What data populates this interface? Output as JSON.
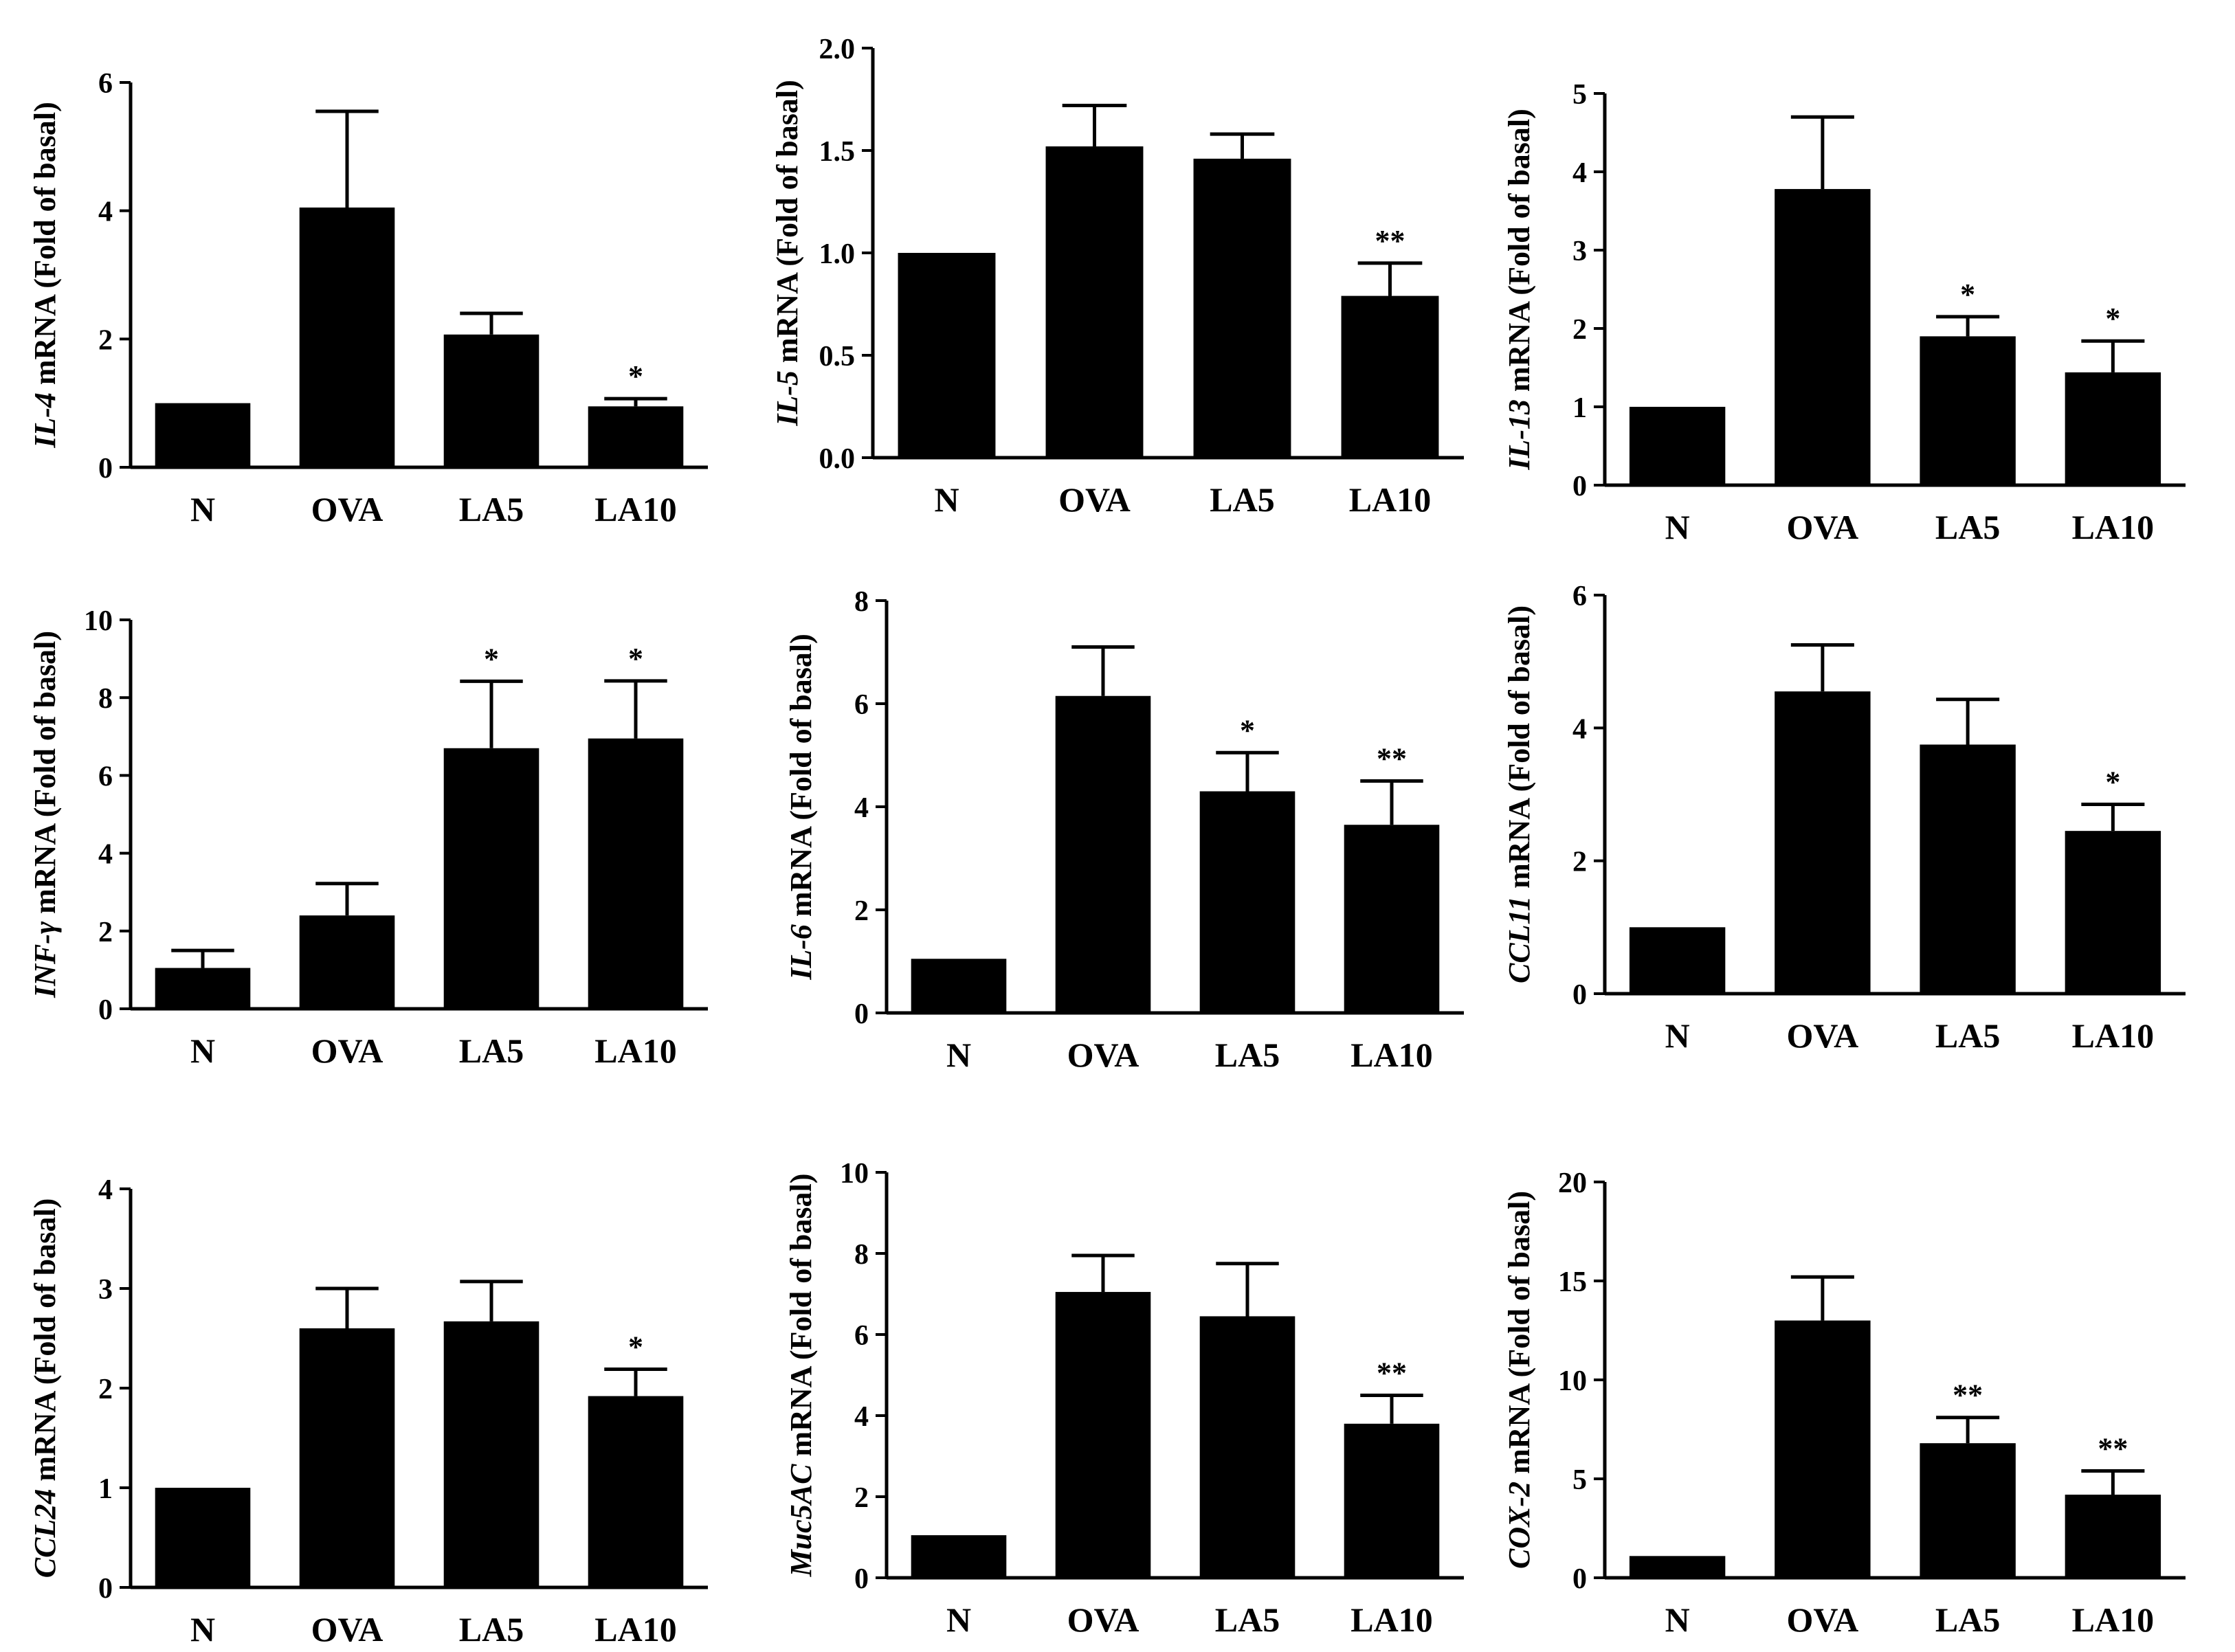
{
  "chart_data": [
    {
      "type": "bar",
      "categories": [
        "N",
        "OVA",
        "LA5",
        "LA10"
      ],
      "values": [
        1.0,
        4.05,
        2.07,
        0.95
      ],
      "errors": [
        0,
        1.5,
        0.33,
        0.12
      ],
      "significance": [
        "",
        "",
        "",
        "*"
      ],
      "ylabel_gene": "IL-4",
      "ylabel_rest": " mRNA (Fold of basal)",
      "ylim": [
        0,
        6
      ],
      "yticks": [
        "0",
        "2",
        "4",
        "6"
      ]
    },
    {
      "type": "bar",
      "categories": [
        "N",
        "OVA",
        "LA5",
        "LA10"
      ],
      "values": [
        1.0,
        1.52,
        1.46,
        0.79
      ],
      "errors": [
        0,
        0.2,
        0.12,
        0.16
      ],
      "significance": [
        "",
        "",
        "",
        "**"
      ],
      "ylabel_gene": "IL-5",
      "ylabel_rest": " mRNA (Fold of basal)",
      "ylim": [
        0,
        2.0
      ],
      "yticks": [
        "0.0",
        "0.5",
        "1.0",
        "1.5",
        "2.0"
      ]
    },
    {
      "type": "bar",
      "categories": [
        "N",
        "OVA",
        "LA5",
        "LA10"
      ],
      "values": [
        1.0,
        3.78,
        1.9,
        1.44
      ],
      "errors": [
        0,
        0.92,
        0.25,
        0.4
      ],
      "significance": [
        "",
        "",
        "*",
        "*"
      ],
      "ylabel_gene": "IL-13",
      "ylabel_rest": " mRNA (Fold of basal)",
      "ylim": [
        0,
        5
      ],
      "yticks": [
        "0",
        "1",
        "2",
        "3",
        "4",
        "5"
      ]
    },
    {
      "type": "bar",
      "categories": [
        "N",
        "OVA",
        "LA5",
        "LA10"
      ],
      "values": [
        1.05,
        2.4,
        6.7,
        6.95
      ],
      "errors": [
        0.45,
        0.82,
        1.72,
        1.48
      ],
      "significance": [
        "",
        "",
        "*",
        "*"
      ],
      "ylabel_gene": "INF-γ",
      "ylabel_rest": " mRNA (Fold of basal)",
      "ylim": [
        0,
        10
      ],
      "yticks": [
        "0",
        "2",
        "4",
        "6",
        "8",
        "10"
      ]
    },
    {
      "type": "bar",
      "categories": [
        "N",
        "OVA",
        "LA5",
        "LA10"
      ],
      "values": [
        1.05,
        6.15,
        4.3,
        3.65
      ],
      "errors": [
        0,
        0.95,
        0.75,
        0.85
      ],
      "significance": [
        "",
        "",
        "*",
        "**"
      ],
      "ylabel_gene": "IL-6",
      "ylabel_rest": " mRNA (Fold of basal)",
      "ylim": [
        0,
        8
      ],
      "yticks": [
        "0",
        "2",
        "4",
        "6",
        "8"
      ]
    },
    {
      "type": "bar",
      "categories": [
        "N",
        "OVA",
        "LA5",
        "LA10"
      ],
      "values": [
        1.0,
        4.55,
        3.75,
        2.45
      ],
      "errors": [
        0,
        0.7,
        0.68,
        0.4
      ],
      "significance": [
        "",
        "",
        "",
        "*"
      ],
      "ylabel_gene": "CCL11",
      "ylabel_rest": " mRNA (Fold of basal)",
      "ylim": [
        0,
        6
      ],
      "yticks": [
        "0",
        "2",
        "4",
        "6"
      ]
    },
    {
      "type": "bar",
      "categories": [
        "N",
        "OVA",
        "LA5",
        "LA10"
      ],
      "values": [
        1.0,
        2.6,
        2.67,
        1.92
      ],
      "errors": [
        0,
        0.4,
        0.4,
        0.27
      ],
      "significance": [
        "",
        "",
        "",
        "*"
      ],
      "ylabel_gene": "CCL24",
      "ylabel_rest": " mRNA (Fold of basal)",
      "ylim": [
        0,
        4
      ],
      "yticks": [
        "0",
        "1",
        "2",
        "3",
        "4"
      ]
    },
    {
      "type": "bar",
      "categories": [
        "N",
        "OVA",
        "LA5",
        "LA10"
      ],
      "values": [
        1.05,
        7.05,
        6.45,
        3.8
      ],
      "errors": [
        0,
        0.9,
        1.3,
        0.7
      ],
      "significance": [
        "",
        "",
        "",
        "**"
      ],
      "ylabel_gene": "Muc5AC",
      "ylabel_rest": " mRNA (Fold of basal)",
      "ylim": [
        0,
        10
      ],
      "yticks": [
        "0",
        "2",
        "4",
        "6",
        "8",
        "10"
      ]
    },
    {
      "type": "bar",
      "categories": [
        "N",
        "OVA",
        "LA5",
        "LA10"
      ],
      "values": [
        1.1,
        13.0,
        6.8,
        4.2
      ],
      "errors": [
        0,
        2.2,
        1.3,
        1.2
      ],
      "significance": [
        "",
        "",
        "**",
        "**"
      ],
      "ylabel_gene": "COX-2",
      "ylabel_rest": " mRNA (Fold of basal)",
      "ylim": [
        0,
        20
      ],
      "yticks": [
        "0",
        "5",
        "10",
        "15",
        "20"
      ]
    }
  ]
}
